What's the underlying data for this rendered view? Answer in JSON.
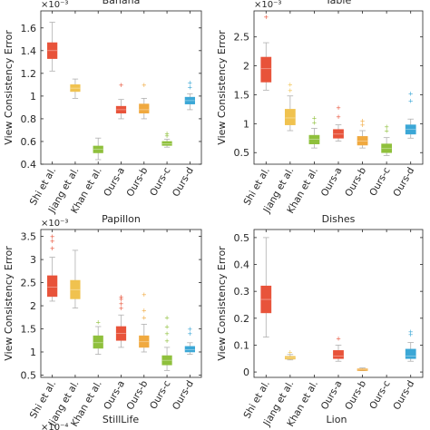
{
  "chart_data": [
    {
      "type": "box",
      "title": "Banana",
      "ylabel": "View Consistency Error",
      "multiplier": "×10⁻³",
      "ylim": [
        0.4,
        1.75
      ],
      "yticks": [
        "0.4",
        "0.6",
        "0.8",
        "1",
        "1.2",
        "1.4",
        "1.6"
      ],
      "categories": [
        "Shi et al.",
        "Jiang et al.",
        "Khan et al.",
        "Ours-a",
        "Ours-b",
        "Ours-c",
        "Ours-d"
      ],
      "boxes": [
        {
          "min": 1.22,
          "q1": 1.33,
          "median": 1.4,
          "q3": 1.47,
          "max": 1.65,
          "outliers": []
        },
        {
          "min": 0.98,
          "q1": 1.04,
          "median": 1.07,
          "q3": 1.1,
          "max": 1.15,
          "outliers": []
        },
        {
          "min": 0.44,
          "q1": 0.5,
          "median": 0.53,
          "q3": 0.56,
          "max": 0.63,
          "outliers": []
        },
        {
          "min": 0.8,
          "q1": 0.85,
          "median": 0.88,
          "q3": 0.91,
          "max": 0.97,
          "outliers": [
            1.1
          ]
        },
        {
          "min": 0.8,
          "q1": 0.85,
          "median": 0.88,
          "q3": 0.93,
          "max": 0.98,
          "outliers": [
            1.1
          ]
        },
        {
          "min": 0.55,
          "q1": 0.565,
          "median": 0.58,
          "q3": 0.6,
          "max": 0.62,
          "outliers": [
            0.65,
            0.67
          ]
        },
        {
          "min": 0.88,
          "q1": 0.93,
          "median": 0.96,
          "q3": 0.99,
          "max": 1.02,
          "outliers": [
            1.08,
            1.12
          ]
        }
      ]
    },
    {
      "type": "box",
      "title": "Table",
      "ylabel": "View Consistency Error",
      "multiplier": "×10⁻³",
      "ylim": [
        0.3,
        2.95
      ],
      "yticks": [
        "0.5",
        "1",
        "1.5",
        "2",
        "2.5"
      ],
      "categories": [
        "Shi et al.",
        "Jiang et al.",
        "Khan et al.",
        "Ours-a",
        "Ours-b",
        "Ours-c",
        "Ours-d"
      ],
      "boxes": [
        {
          "min": 1.58,
          "q1": 1.72,
          "median": 1.95,
          "q3": 2.15,
          "max": 2.4,
          "outliers": [
            2.85
          ]
        },
        {
          "min": 0.88,
          "q1": 0.98,
          "median": 1.1,
          "q3": 1.25,
          "max": 1.48,
          "outliers": [
            1.58,
            1.68
          ]
        },
        {
          "min": 0.58,
          "q1": 0.65,
          "median": 0.73,
          "q3": 0.8,
          "max": 0.92,
          "outliers": [
            1.02,
            1.1
          ]
        },
        {
          "min": 0.7,
          "q1": 0.75,
          "median": 0.82,
          "q3": 0.9,
          "max": 0.98,
          "outliers": [
            1.12,
            1.28
          ]
        },
        {
          "min": 0.58,
          "q1": 0.63,
          "median": 0.7,
          "q3": 0.78,
          "max": 0.88,
          "outliers": [
            0.98,
            1.05
          ]
        },
        {
          "min": 0.45,
          "q1": 0.5,
          "median": 0.57,
          "q3": 0.65,
          "max": 0.76,
          "outliers": [
            0.88,
            0.95
          ]
        },
        {
          "min": 0.75,
          "q1": 0.82,
          "median": 0.9,
          "q3": 0.98,
          "max": 1.08,
          "outliers": [
            1.4,
            1.52
          ]
        }
      ]
    },
    {
      "type": "box",
      "title": "Papillon",
      "ylabel": "View Consistency Error",
      "multiplier": "×10⁻³",
      "ylim": [
        0.45,
        3.65
      ],
      "yticks": [
        "0.5",
        "1",
        "1.5",
        "2",
        "2.5",
        "3",
        "3.5"
      ],
      "categories": [
        "Shi et al.",
        "Jiang et al.",
        "Khan et al.",
        "Ours-a",
        "Ours-b",
        "Ours-c",
        "Ours-d"
      ],
      "boxes": [
        {
          "min": 2.1,
          "q1": 2.2,
          "median": 2.4,
          "q3": 2.65,
          "max": 3.05,
          "outliers": [
            3.25,
            3.4,
            3.5
          ]
        },
        {
          "min": 1.95,
          "q1": 2.15,
          "median": 2.35,
          "q3": 2.55,
          "max": 3.2,
          "outliers": []
        },
        {
          "min": 0.95,
          "q1": 1.08,
          "median": 1.2,
          "q3": 1.35,
          "max": 1.55,
          "outliers": [
            1.65
          ]
        },
        {
          "min": 1.1,
          "q1": 1.25,
          "median": 1.4,
          "q3": 1.55,
          "max": 1.8,
          "outliers": [
            1.95,
            2.05,
            2.15,
            2.2
          ]
        },
        {
          "min": 1.0,
          "q1": 1.1,
          "median": 1.22,
          "q3": 1.35,
          "max": 1.6,
          "outliers": [
            1.75,
            1.9,
            2.25
          ]
        },
        {
          "min": 0.6,
          "q1": 0.72,
          "median": 0.82,
          "q3": 0.92,
          "max": 1.1,
          "outliers": [
            1.25,
            1.4,
            1.55,
            1.75
          ]
        },
        {
          "min": 0.95,
          "q1": 1.0,
          "median": 1.05,
          "q3": 1.12,
          "max": 1.2,
          "outliers": [
            1.4,
            1.5
          ]
        }
      ]
    },
    {
      "type": "box",
      "title": "Dishes",
      "ylabel": "View Consistency Error",
      "multiplier": "",
      "ylim": [
        -0.02,
        0.53
      ],
      "yticks": [
        "0",
        "0.1",
        "0.2",
        "0.3",
        "0.4",
        "0.5"
      ],
      "categories": [
        "Shi et al.",
        "Jiang et al.",
        "Khan et al.",
        "Ours-a",
        "Ours-b",
        "Ours-c",
        "Ours-d"
      ],
      "boxes": [
        {
          "min": 0.13,
          "q1": 0.22,
          "median": 0.27,
          "q3": 0.32,
          "max": 0.5,
          "outliers": []
        },
        {
          "min": 0.045,
          "q1": 0.048,
          "median": 0.052,
          "q3": 0.058,
          "max": 0.065,
          "outliers": [
            0.075
          ]
        },
        null,
        {
          "min": 0.04,
          "q1": 0.05,
          "median": 0.06,
          "q3": 0.08,
          "max": 0.1,
          "outliers": [
            0.125
          ]
        },
        {
          "min": 0.005,
          "q1": 0.008,
          "median": 0.01,
          "q3": 0.012,
          "max": 0.015,
          "outliers": []
        },
        null,
        {
          "min": 0.04,
          "q1": 0.05,
          "median": 0.06,
          "q3": 0.085,
          "max": 0.11,
          "outliers": [
            0.14,
            0.15
          ]
        }
      ]
    },
    {
      "type": "box",
      "title": "StillLife",
      "multiplier": "×10⁻⁴",
      "categories": [],
      "boxes": []
    },
    {
      "type": "box",
      "title": "Lion",
      "categories": [],
      "boxes": []
    }
  ],
  "colors": [
    "#e8533a",
    "#f0c24f",
    "#8fc03c",
    "#e8533a",
    "#f0a93f",
    "#8fc03c",
    "#3ba7d6"
  ]
}
